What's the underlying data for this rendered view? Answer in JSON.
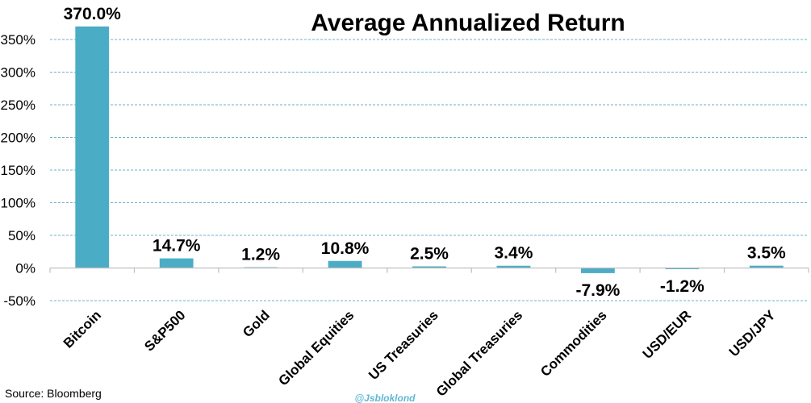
{
  "chart_data": {
    "type": "bar",
    "title": "Average Annualized Return",
    "categories": [
      "Bitcoin",
      "S&P500",
      "Gold",
      "Global Equities",
      "US Treasuries",
      "Global Treasuries",
      "Commodities",
      "USD/EUR",
      "USD/JPY"
    ],
    "values": [
      370.0,
      14.7,
      1.2,
      10.8,
      2.5,
      3.4,
      -7.9,
      -1.2,
      3.5
    ],
    "data_labels": [
      "370.0%",
      "14.7%",
      "1.2%",
      "10.8%",
      "2.5%",
      "3.4%",
      "-7.9%",
      "-1.2%",
      "3.5%"
    ],
    "ylim": [
      -50,
      350
    ],
    "yticks": [
      -50,
      0,
      50,
      100,
      150,
      200,
      250,
      300,
      350
    ],
    "ytick_labels": [
      "-50%",
      "0%",
      "50%",
      "100%",
      "150%",
      "200%",
      "250%",
      "300%",
      "350%"
    ],
    "xlabel": "",
    "ylabel": "",
    "grid": true,
    "bar_color": "#4bacc6"
  },
  "footer": {
    "source": "Source: Bloomberg",
    "watermark": "@Jsbloklond"
  }
}
